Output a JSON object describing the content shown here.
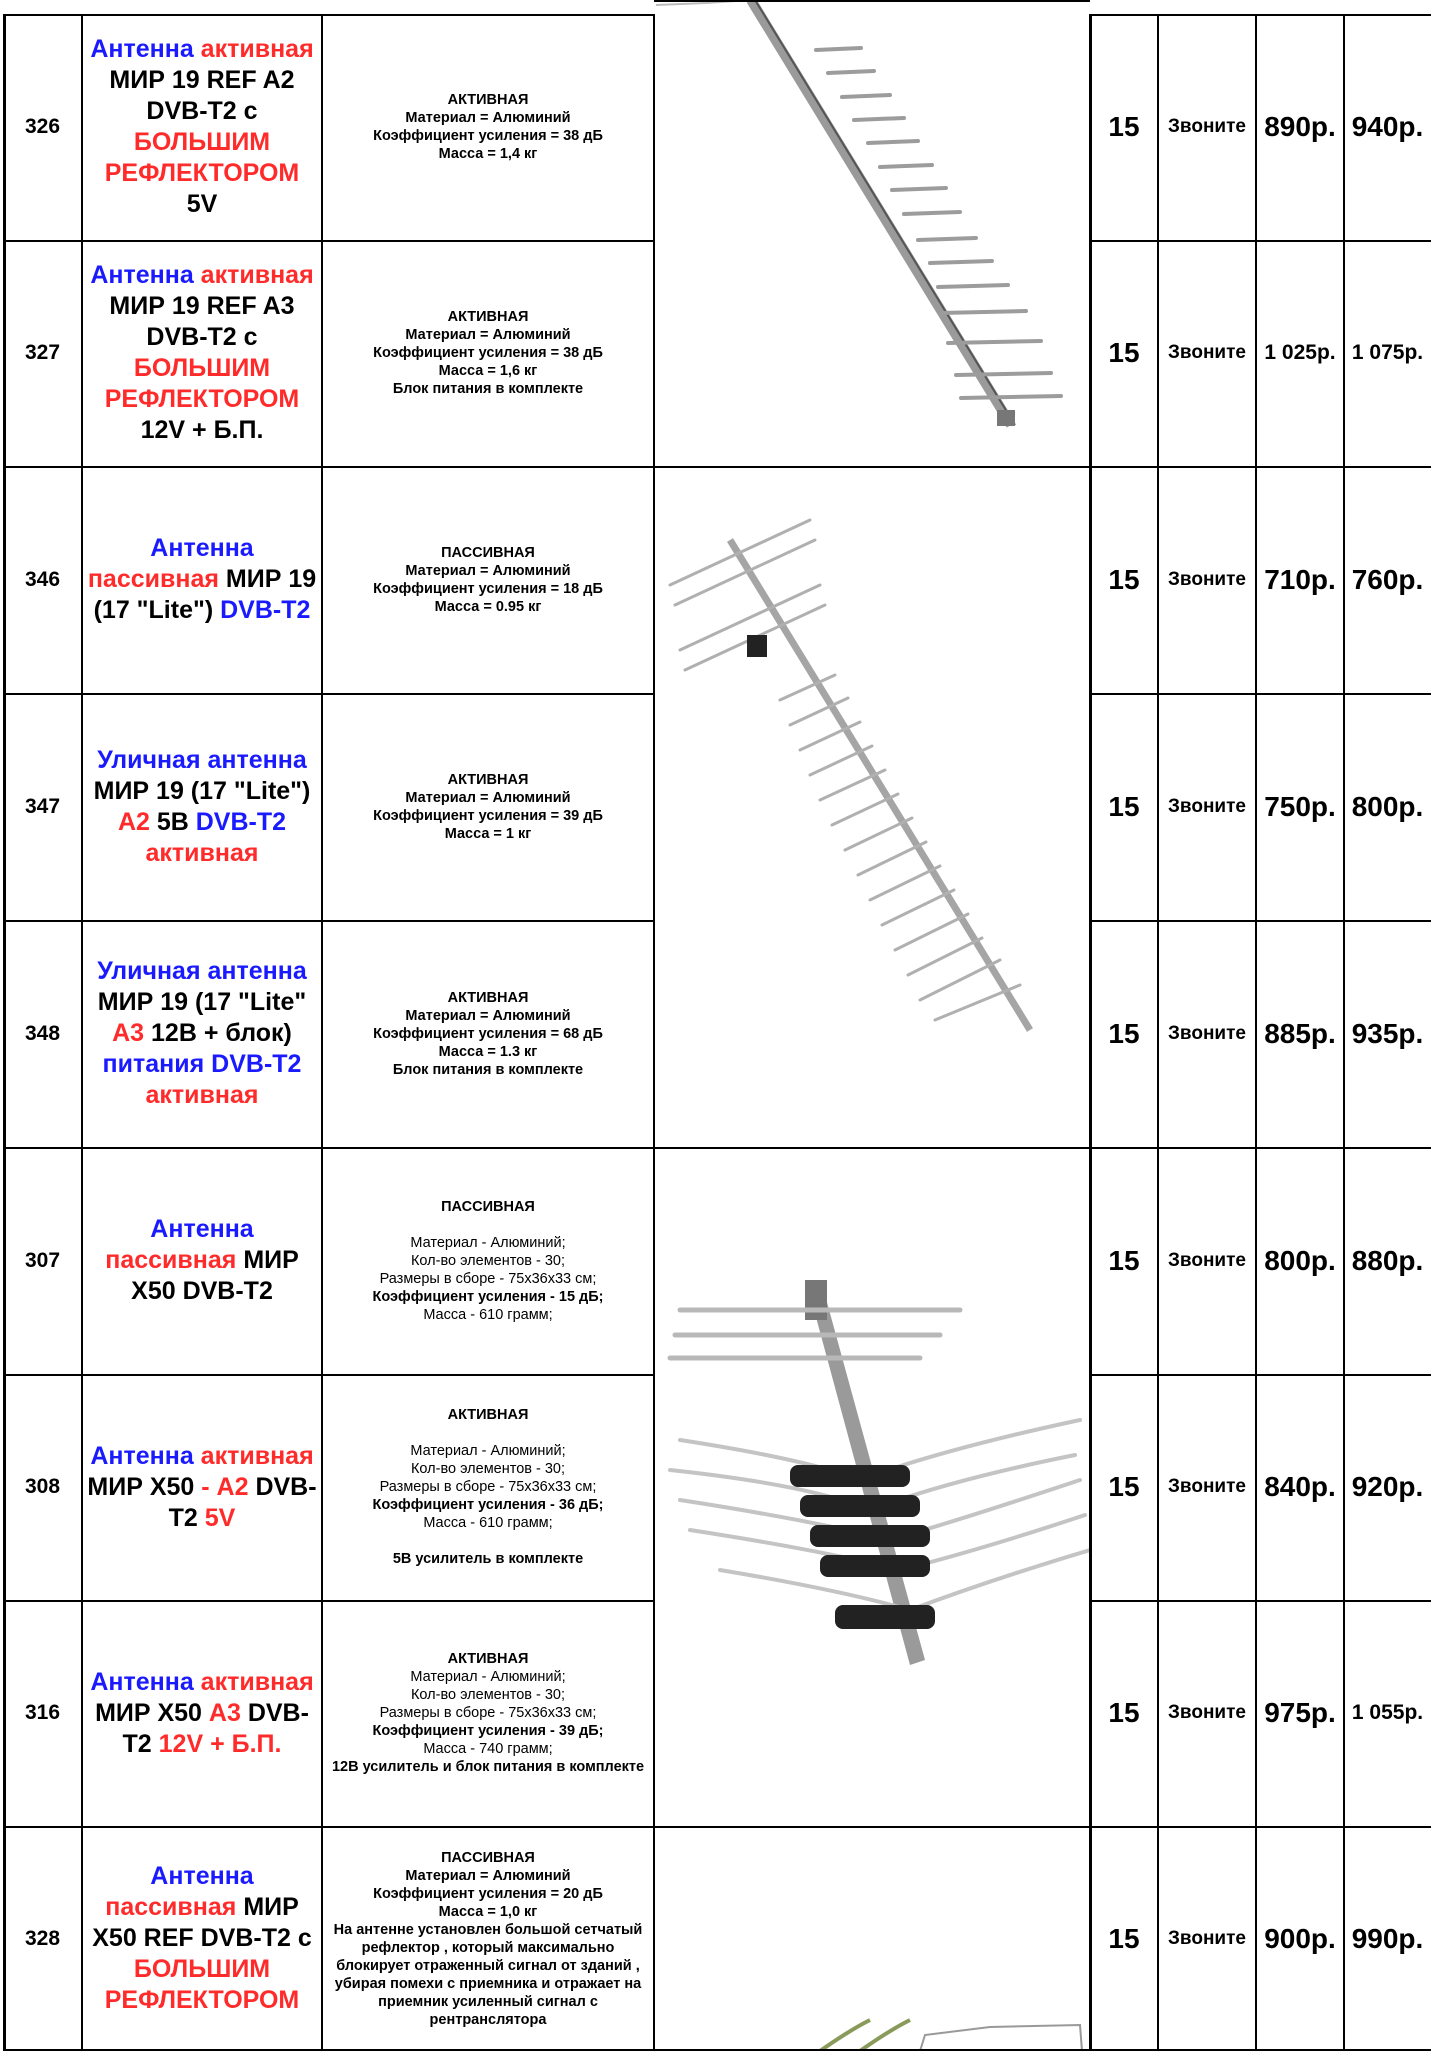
{
  "rows": [
    {
      "id": "326",
      "name": [
        {
          "t": "Антенна ",
          "c": "blue"
        },
        {
          "t": "активная ",
          "c": "red"
        },
        {
          "t": "МИР 19 REF A2 DVB-T2 с ",
          "c": "black"
        },
        {
          "t": "БОЛЬШИМ РЕФЛЕКТОРОМ ",
          "c": "red"
        },
        {
          "t": "5V",
          "c": "black"
        }
      ],
      "desc": [
        "АКТИВНАЯ",
        "Материал = Алюминий",
        "Коэффициент усиления = 38 дБ",
        "Масса = 1,4 кг"
      ],
      "qty": "15",
      "call": "Звоните",
      "p1": "890р.",
      "p2": "940р."
    },
    {
      "id": "327",
      "name": [
        {
          "t": "Антенна ",
          "c": "blue"
        },
        {
          "t": "активная ",
          "c": "red"
        },
        {
          "t": "МИР 19 REF A3 DVB-T2 с ",
          "c": "black"
        },
        {
          "t": "БОЛЬШИМ РЕФЛЕКТОРОМ ",
          "c": "red"
        },
        {
          "t": "12V + Б.П.",
          "c": "black"
        }
      ],
      "desc": [
        "АКТИВНАЯ",
        "Материал = Алюминий",
        "Коэффициент усиления = 38 дБ",
        "Масса = 1,6 кг",
        "Блок питания в комплекте"
      ],
      "qty": "15",
      "call": "Звоните",
      "p1": "1 025р.",
      "p2": "1 075р."
    },
    {
      "id": "346",
      "name": [
        {
          "t": "Антенна ",
          "c": "blue"
        },
        {
          "t": "пассивная ",
          "c": "red"
        },
        {
          "t": "МИР 19 (17 \"Lite\") ",
          "c": "black"
        },
        {
          "t": "DVB-T2",
          "c": "blue"
        }
      ],
      "desc": [
        "ПАССИВНАЯ",
        "Материал = Алюминий",
        "Коэффициент усиления = 18 дБ",
        "Масса = 0.95 кг"
      ],
      "qty": "15",
      "call": "Звоните",
      "p1": "710р.",
      "p2": "760р."
    },
    {
      "id": "347",
      "name": [
        {
          "t": "Уличная антенна ",
          "c": "blue"
        },
        {
          "t": "МИР 19 (17 \"Lite\") ",
          "c": "black"
        },
        {
          "t": "А2 ",
          "c": "red"
        },
        {
          "t": "5В ",
          "c": "black"
        },
        {
          "t": "DVB-T2 ",
          "c": "blue"
        },
        {
          "t": "активная",
          "c": "red"
        }
      ],
      "desc": [
        "АКТИВНАЯ",
        "Материал = Алюминий",
        "Коэффициент усиления = 39 дБ",
        "Масса = 1 кг"
      ],
      "qty": "15",
      "call": "Звоните",
      "p1": "750р.",
      "p2": "800р."
    },
    {
      "id": "348",
      "name": [
        {
          "t": "Уличная антенна ",
          "c": "blue"
        },
        {
          "t": "МИР 19 (17 \"Lite\" ",
          "c": "black"
        },
        {
          "t": "А3 ",
          "c": "red"
        },
        {
          "t": "12В + блок) ",
          "c": "black"
        },
        {
          "t": "питания DVB-T2 ",
          "c": "blue"
        },
        {
          "t": "активная",
          "c": "red"
        }
      ],
      "desc": [
        "АКТИВНАЯ",
        "Материал = Алюминий",
        "Коэффициент усиления = 68 дБ",
        "Масса = 1.3 кг",
        "Блок питания в комплекте"
      ],
      "qty": "15",
      "call": "Звоните",
      "p1": "885р.",
      "p2": "935р."
    },
    {
      "id": "307",
      "name": [
        {
          "t": "Антенна ",
          "c": "blue"
        },
        {
          "t": "пассивная ",
          "c": "red"
        },
        {
          "t": "МИР X50 DVB-T2",
          "c": "black"
        }
      ],
      "desc": [
        "ПАССИВНАЯ",
        "",
        "Материал - Алюминий;",
        "Кол-во элементов - 30;",
        "Размеры в сборе - 75x36x33 см;",
        "Коэффициент усиления - 15 дБ;",
        "Масса - 610 грамм;"
      ],
      "qty": "15",
      "call": "Звоните",
      "p1": "800р.",
      "p2": "880р."
    },
    {
      "id": "308",
      "name": [
        {
          "t": "Антенна ",
          "c": "blue"
        },
        {
          "t": "активная ",
          "c": "red"
        },
        {
          "t": "МИР X50 ",
          "c": "black"
        },
        {
          "t": "- А2 ",
          "c": "red"
        },
        {
          "t": "DVB-T2 ",
          "c": "black"
        },
        {
          "t": "5V",
          "c": "red"
        }
      ],
      "desc": [
        "АКТИВНАЯ",
        "",
        "Материал - Алюминий;",
        "Кол-во элементов - 30;",
        "Размеры в сборе - 75x36x33 см;",
        "Коэффициент усиления - 36 дБ;",
        "Масса - 610 грамм;",
        "",
        "5В усилитель в комплекте"
      ],
      "qty": "15",
      "call": "Звоните",
      "p1": "840р.",
      "p2": "920р."
    },
    {
      "id": "316",
      "name": [
        {
          "t": "Антенна ",
          "c": "blue"
        },
        {
          "t": "активная ",
          "c": "red"
        },
        {
          "t": "МИР X50 ",
          "c": "black"
        },
        {
          "t": "А3 ",
          "c": "red"
        },
        {
          "t": "DVB-T2 ",
          "c": "black"
        },
        {
          "t": "12V + Б.П.",
          "c": "red"
        }
      ],
      "desc": [
        "АКТИВНАЯ",
        "Материал - Алюминий;",
        "Кол-во элементов - 30;",
        "Размеры в сборе - 75x36x33 см;",
        "Коэффициент усиления - 39 дБ;",
        "Масса - 740 грамм;",
        "12В усилитель и блок питания в комплекте"
      ],
      "qty": "15",
      "call": "Звоните",
      "p1": "975р.",
      "p2": "1 055р."
    },
    {
      "id": "328",
      "name": [
        {
          "t": "Антенна ",
          "c": "blue"
        },
        {
          "t": "пассивная ",
          "c": "red"
        },
        {
          "t": "МИР X50 REF DVB-T2 с ",
          "c": "black"
        },
        {
          "t": "БОЛЬШИМ РЕФЛЕКТОРОМ",
          "c": "red"
        }
      ],
      "desc": [
        "ПАССИВНАЯ",
        "Материал = Алюминий",
        "Коэффициент усиления = 20 дБ",
        "Масса = 1,0 кг",
        "На антенне установлен большой сетчатый рефлектор , который максимально блокирует отраженный сигнал от зданий , убирая помехи с приемника и отражает на приемник усиленный сигнал с рентранслятора"
      ],
      "qty": "15",
      "call": "Звоните",
      "p1": "900р.",
      "p2": "990р."
    }
  ]
}
